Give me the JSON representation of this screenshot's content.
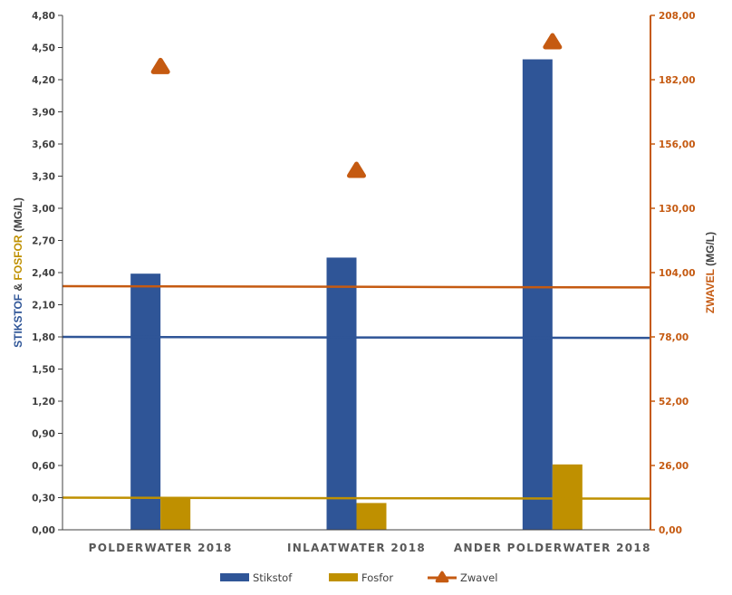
{
  "chart_data": {
    "type": "bar",
    "categories": [
      "POLDERWATER 2018",
      "INLAATWATER 2018",
      "ANDER POLDERWATER 2018"
    ],
    "series": [
      {
        "name": "Stikstof",
        "type": "bar",
        "axis": "left",
        "color": "#2f5597",
        "values": [
          2.39,
          2.54,
          4.39
        ]
      },
      {
        "name": "Fosfor",
        "type": "bar",
        "axis": "left",
        "color": "#bf9000",
        "values": [
          0.3,
          0.25,
          0.61
        ]
      },
      {
        "name": "Zwavel",
        "type": "scatter",
        "axis": "right",
        "color": "#c55a11",
        "values": [
          187,
          145,
          197
        ]
      }
    ],
    "reference_lines": [
      {
        "axis": "left",
        "color": "#2f5597",
        "start": 1.8,
        "end": 1.79
      },
      {
        "axis": "left",
        "color": "#bf9000",
        "start": 0.3,
        "end": 0.29
      },
      {
        "axis": "right",
        "color": "#c55a11",
        "start": 98.5,
        "end": 98.0
      }
    ],
    "y_left": {
      "title_parts": [
        {
          "text": "STIKSTOF",
          "color": "#2f5597"
        },
        {
          "text": " & ",
          "color": "#404040"
        },
        {
          "text": "FOSFOR",
          "color": "#bf9000"
        },
        {
          "text": " (MG/L)",
          "color": "#404040"
        }
      ],
      "min": 0,
      "max": 4.8,
      "ticks": [
        "0,00",
        "0,30",
        "0,60",
        "0,90",
        "1,20",
        "1,50",
        "1,80",
        "2,10",
        "2,40",
        "2,70",
        "3,00",
        "3,30",
        "3,60",
        "3,90",
        "4,20",
        "4,50",
        "4,80"
      ]
    },
    "y_right": {
      "title_parts": [
        {
          "text": "ZWAVEL",
          "color": "#c55a11"
        },
        {
          "text": " (MG/L)",
          "color": "#404040"
        }
      ],
      "min": 0,
      "max": 208,
      "ticks": [
        "0,00",
        "26,00",
        "52,00",
        "78,00",
        "104,00",
        "130,00",
        "156,00",
        "182,00",
        "208,00"
      ]
    },
    "grid": false,
    "legend_position": "bottom"
  }
}
